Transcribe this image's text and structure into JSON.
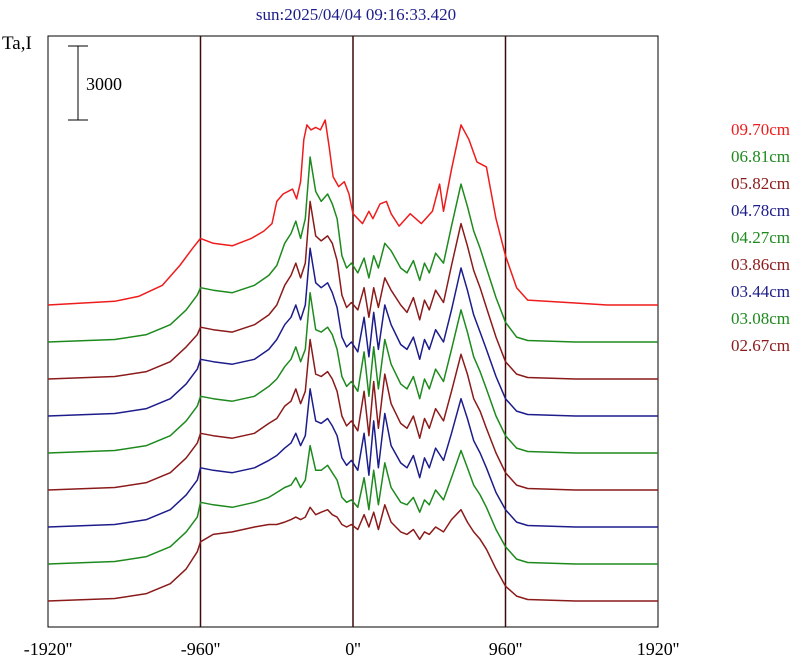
{
  "chart_data": {
    "type": "line",
    "title": "sun:2025/04/04 09:16:33.420",
    "ylabel": "Ta,I",
    "scale_bar_label": "3000",
    "xlim": [
      -1920,
      1920
    ],
    "xticks": [
      {
        "value": -1920,
        "label": "-1920''"
      },
      {
        "value": -960,
        "label": "-960''"
      },
      {
        "value": 0,
        "label": "0''"
      },
      {
        "value": 960,
        "label": "960''"
      },
      {
        "value": 1920,
        "label": "1920''"
      }
    ],
    "vlines": [
      -960,
      0,
      960
    ],
    "grid": false,
    "legend_position": "right",
    "scale_bar_units": 3000,
    "series": [
      {
        "name": "09.70cm",
        "color": "#ee1c1c",
        "offset": 12000,
        "x": [
          -1920,
          -1500,
          -1350,
          -1200,
          -1090,
          -1010,
          -960,
          -880,
          -760,
          -640,
          -560,
          -510,
          -480,
          -440,
          -380,
          -355,
          -330,
          -310,
          -290,
          -265,
          -235,
          -205,
          -175,
          -150,
          -125,
          -90,
          -55,
          -25,
          0,
          60,
          100,
          125,
          170,
          210,
          240,
          290,
          360,
          430,
          500,
          545,
          570,
          620,
          680,
          730,
          780,
          840,
          900,
          960,
          1030,
          1100,
          1400,
          1600,
          1920
        ],
        "y": [
          0,
          150,
          350,
          800,
          1600,
          2300,
          2700,
          2500,
          2400,
          2700,
          3000,
          3300,
          4200,
          4500,
          4700,
          4300,
          5000,
          6700,
          7300,
          7100,
          7200,
          7100,
          7500,
          6400,
          5200,
          4800,
          5000,
          4500,
          3700,
          3300,
          3800,
          3500,
          4100,
          4200,
          3700,
          3200,
          3700,
          3300,
          3800,
          4900,
          3800,
          5500,
          7300,
          6700,
          5800,
          5600,
          3500,
          2000,
          700,
          200,
          80,
          0,
          0
        ]
      },
      {
        "name": "06.81cm",
        "color": "#1e8a1e",
        "offset": 10500,
        "x": [
          -1920,
          -1500,
          -1300,
          -1150,
          -1050,
          -980,
          -960,
          -880,
          -760,
          -620,
          -530,
          -480,
          -430,
          -390,
          -360,
          -330,
          -300,
          -270,
          -235,
          -200,
          -160,
          -130,
          -100,
          -70,
          -40,
          -10,
          30,
          70,
          100,
          130,
          160,
          200,
          240,
          300,
          340,
          380,
          420,
          450,
          480,
          520,
          570,
          620,
          680,
          720,
          760,
          800,
          840,
          900,
          960,
          1030,
          1100,
          1400,
          1600,
          1920
        ],
        "y": [
          0,
          100,
          300,
          700,
          1300,
          1900,
          2200,
          2100,
          2000,
          2300,
          2700,
          3100,
          4000,
          4400,
          4900,
          4200,
          5000,
          7500,
          6100,
          5700,
          6000,
          5600,
          5000,
          3500,
          3000,
          3200,
          2800,
          3400,
          2600,
          3500,
          3000,
          4000,
          3700,
          3000,
          2800,
          3300,
          2500,
          3200,
          2800,
          3600,
          3200,
          4700,
          6400,
          5500,
          4500,
          3800,
          3000,
          1800,
          800,
          200,
          60,
          0,
          0,
          0
        ]
      },
      {
        "name": "05.82cm",
        "color": "#8b1a1a",
        "offset": 9000,
        "x": [
          -1920,
          -1500,
          -1300,
          -1150,
          -1050,
          -980,
          -960,
          -880,
          -760,
          -620,
          -530,
          -480,
          -430,
          -390,
          -360,
          -330,
          -300,
          -270,
          -235,
          -200,
          -160,
          -130,
          -100,
          -70,
          -40,
          -10,
          30,
          70,
          100,
          130,
          160,
          200,
          240,
          300,
          340,
          380,
          420,
          450,
          480,
          520,
          570,
          620,
          680,
          720,
          760,
          800,
          840,
          900,
          960,
          1030,
          1100,
          1400,
          1600,
          1920
        ],
        "y": [
          0,
          100,
          300,
          700,
          1300,
          1800,
          2100,
          2000,
          1900,
          2200,
          2600,
          3000,
          3800,
          4200,
          4700,
          4100,
          4700,
          7200,
          5800,
          5600,
          5800,
          5500,
          4800,
          3400,
          2900,
          3100,
          2800,
          3700,
          2500,
          3700,
          2900,
          4100,
          3600,
          3000,
          2700,
          3300,
          2400,
          3200,
          2800,
          3600,
          3100,
          4600,
          6300,
          5400,
          4400,
          3700,
          2900,
          1700,
          700,
          200,
          60,
          0,
          0,
          0
        ]
      },
      {
        "name": "04.78cm",
        "color": "#1c1c8b",
        "offset": 7500,
        "x": [
          -1920,
          -1500,
          -1300,
          -1150,
          -1050,
          -980,
          -960,
          -880,
          -760,
          -620,
          -530,
          -480,
          -430,
          -390,
          -360,
          -330,
          -300,
          -270,
          -235,
          -200,
          -160,
          -130,
          -100,
          -70,
          -40,
          -10,
          30,
          70,
          100,
          130,
          160,
          200,
          240,
          300,
          340,
          380,
          420,
          450,
          480,
          520,
          570,
          620,
          680,
          720,
          760,
          800,
          840,
          900,
          960,
          1030,
          1100,
          1400,
          1600,
          1920
        ],
        "y": [
          0,
          100,
          300,
          700,
          1300,
          1900,
          2300,
          2200,
          2100,
          2300,
          2700,
          3100,
          3700,
          4000,
          4500,
          3900,
          4500,
          6800,
          5400,
          5200,
          5400,
          5000,
          4400,
          3200,
          2800,
          3000,
          2600,
          4000,
          2400,
          4200,
          2700,
          4500,
          3700,
          2900,
          2700,
          3200,
          2300,
          3100,
          2700,
          3500,
          3000,
          4300,
          6000,
          5100,
          4100,
          3400,
          2700,
          1600,
          700,
          200,
          60,
          0,
          0,
          0
        ]
      },
      {
        "name": "04.27cm",
        "color": "#1e8a1e",
        "offset": 6000,
        "x": [
          -1920,
          -1500,
          -1300,
          -1150,
          -1050,
          -980,
          -960,
          -880,
          -760,
          -620,
          -530,
          -480,
          -430,
          -390,
          -360,
          -330,
          -300,
          -270,
          -235,
          -200,
          -160,
          -130,
          -100,
          -70,
          -40,
          -10,
          30,
          70,
          100,
          130,
          160,
          200,
          240,
          300,
          340,
          380,
          420,
          450,
          480,
          520,
          570,
          620,
          680,
          720,
          760,
          800,
          840,
          900,
          960,
          1030,
          1100,
          1400,
          1600,
          1920
        ],
        "y": [
          0,
          100,
          300,
          700,
          1300,
          1900,
          2300,
          2200,
          2100,
          2300,
          2700,
          3000,
          3500,
          3800,
          4300,
          3700,
          4200,
          6500,
          5000,
          4900,
          5100,
          4800,
          4200,
          3100,
          2700,
          2900,
          2500,
          4100,
          2300,
          4300,
          2600,
          4600,
          3600,
          2800,
          2600,
          3100,
          2200,
          3000,
          2600,
          3400,
          2900,
          4200,
          5800,
          4900,
          3900,
          3300,
          2600,
          1500,
          700,
          200,
          60,
          0,
          0,
          0
        ]
      },
      {
        "name": "03.86cm",
        "color": "#8b1a1a",
        "offset": 4500,
        "x": [
          -1920,
          -1500,
          -1300,
          -1150,
          -1050,
          -980,
          -960,
          -880,
          -760,
          -620,
          -530,
          -480,
          -430,
          -390,
          -360,
          -330,
          -300,
          -270,
          -235,
          -200,
          -160,
          -130,
          -100,
          -70,
          -40,
          -10,
          30,
          70,
          100,
          130,
          160,
          200,
          240,
          300,
          340,
          380,
          420,
          450,
          480,
          520,
          570,
          620,
          680,
          720,
          760,
          800,
          840,
          900,
          960,
          1030,
          1100,
          1400,
          1600,
          1920
        ],
        "y": [
          0,
          100,
          300,
          700,
          1300,
          1900,
          2300,
          2200,
          2100,
          2300,
          2700,
          2900,
          3400,
          3600,
          4100,
          3500,
          4000,
          6100,
          4700,
          4600,
          4800,
          4500,
          4000,
          3000,
          2600,
          2800,
          2400,
          4000,
          2200,
          4400,
          2500,
          4700,
          3500,
          2700,
          2500,
          3000,
          2100,
          2900,
          2500,
          3300,
          2800,
          4000,
          5500,
          4700,
          3700,
          3200,
          2500,
          1500,
          700,
          200,
          60,
          0,
          0,
          0
        ]
      },
      {
        "name": "03.44cm",
        "color": "#1c1c8b",
        "offset": 3000,
        "x": [
          -1920,
          -1500,
          -1300,
          -1150,
          -1050,
          -980,
          -960,
          -880,
          -760,
          -620,
          -530,
          -480,
          -430,
          -390,
          -360,
          -330,
          -300,
          -270,
          -235,
          -200,
          -160,
          -130,
          -100,
          -70,
          -40,
          -10,
          30,
          70,
          100,
          130,
          160,
          200,
          240,
          300,
          340,
          380,
          420,
          450,
          480,
          520,
          570,
          620,
          680,
          720,
          760,
          800,
          840,
          900,
          960,
          1030,
          1100,
          1400,
          1600,
          1920
        ],
        "y": [
          0,
          100,
          300,
          700,
          1300,
          1900,
          2400,
          2300,
          2200,
          2400,
          2700,
          2900,
          3200,
          3400,
          3800,
          3300,
          3700,
          5600,
          4300,
          4200,
          4400,
          4100,
          3700,
          2800,
          2500,
          2700,
          2300,
          3800,
          2100,
          4300,
          2400,
          4600,
          3300,
          2600,
          2400,
          2900,
          2000,
          2800,
          2400,
          3200,
          2700,
          3800,
          5200,
          4400,
          3500,
          3000,
          2400,
          1400,
          700,
          200,
          60,
          0,
          0,
          0
        ]
      },
      {
        "name": "03.08cm",
        "color": "#1e8a1e",
        "offset": 1500,
        "x": [
          -1920,
          -1500,
          -1300,
          -1150,
          -1050,
          -980,
          -960,
          -880,
          -760,
          -620,
          -530,
          -480,
          -430,
          -390,
          -360,
          -330,
          -300,
          -270,
          -235,
          -200,
          -160,
          -130,
          -100,
          -70,
          -40,
          -10,
          30,
          70,
          100,
          130,
          160,
          200,
          240,
          300,
          340,
          380,
          420,
          450,
          480,
          520,
          570,
          620,
          680,
          720,
          760,
          800,
          840,
          900,
          960,
          1030,
          1100,
          1400,
          1600,
          1920
        ],
        "y": [
          0,
          100,
          300,
          700,
          1300,
          1900,
          2500,
          2400,
          2300,
          2500,
          2700,
          2900,
          3100,
          3200,
          3500,
          3100,
          3400,
          4800,
          3800,
          3800,
          4000,
          3700,
          3400,
          2700,
          2500,
          2600,
          2300,
          3500,
          2200,
          3800,
          2400,
          4100,
          3100,
          2500,
          2400,
          2700,
          2100,
          2600,
          2400,
          3000,
          2600,
          3500,
          4600,
          3900,
          3200,
          2800,
          2300,
          1400,
          700,
          200,
          60,
          0,
          0,
          0
        ]
      },
      {
        "name": "02.67cm",
        "color": "#8b1a1a",
        "offset": 0,
        "x": [
          -1920,
          -1500,
          -1300,
          -1150,
          -1050,
          -980,
          -960,
          -880,
          -760,
          -620,
          -530,
          -480,
          -430,
          -390,
          -360,
          -330,
          -300,
          -270,
          -235,
          -200,
          -160,
          -130,
          -100,
          -70,
          -40,
          -10,
          30,
          70,
          100,
          130,
          160,
          200,
          240,
          300,
          340,
          380,
          420,
          450,
          480,
          520,
          570,
          620,
          680,
          720,
          760,
          800,
          840,
          900,
          960,
          1030,
          1100,
          1400,
          1600,
          1920
        ],
        "y": [
          0,
          100,
          300,
          700,
          1300,
          2000,
          2400,
          2700,
          2800,
          3000,
          3100,
          3100,
          3200,
          3300,
          3400,
          3300,
          3400,
          3800,
          3500,
          3600,
          3700,
          3500,
          3400,
          3100,
          3000,
          3100,
          2900,
          3500,
          3000,
          3600,
          2900,
          3900,
          3200,
          2800,
          2700,
          2900,
          2500,
          2800,
          2700,
          3000,
          2800,
          3300,
          3700,
          3200,
          2800,
          2500,
          2100,
          1300,
          600,
          200,
          60,
          0,
          0,
          0
        ]
      }
    ]
  }
}
